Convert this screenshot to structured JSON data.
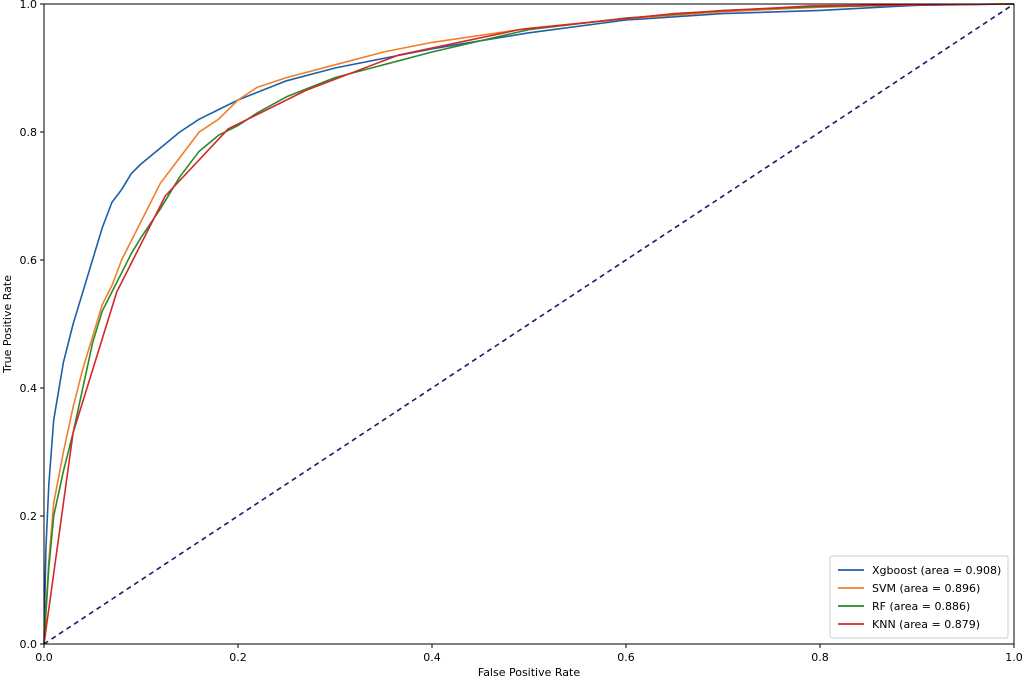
{
  "chart_data": {
    "type": "line",
    "title": "",
    "xlabel": "False Positive Rate",
    "ylabel": "True Positive Rate",
    "xlim": [
      0.0,
      1.0
    ],
    "ylim": [
      0.0,
      1.0
    ],
    "xticks": [
      "0.0",
      "0.2",
      "0.4",
      "0.6",
      "0.8",
      "1.0"
    ],
    "yticks": [
      "0.0",
      "0.2",
      "0.4",
      "0.6",
      "0.8",
      "1.0"
    ],
    "grid": false,
    "legend_position": "lower-right",
    "series": [
      {
        "name": "Xgboost (area = 0.908)",
        "color": "#1f5fa8",
        "style": "solid",
        "points": [
          [
            0.0,
            0.0
          ],
          [
            0.002,
            0.15
          ],
          [
            0.005,
            0.25
          ],
          [
            0.01,
            0.35
          ],
          [
            0.02,
            0.44
          ],
          [
            0.03,
            0.5
          ],
          [
            0.04,
            0.55
          ],
          [
            0.05,
            0.6
          ],
          [
            0.06,
            0.65
          ],
          [
            0.07,
            0.69
          ],
          [
            0.08,
            0.71
          ],
          [
            0.09,
            0.735
          ],
          [
            0.1,
            0.75
          ],
          [
            0.12,
            0.775
          ],
          [
            0.14,
            0.8
          ],
          [
            0.16,
            0.82
          ],
          [
            0.18,
            0.835
          ],
          [
            0.2,
            0.85
          ],
          [
            0.25,
            0.88
          ],
          [
            0.3,
            0.9
          ],
          [
            0.35,
            0.915
          ],
          [
            0.4,
            0.93
          ],
          [
            0.5,
            0.955
          ],
          [
            0.6,
            0.975
          ],
          [
            0.7,
            0.985
          ],
          [
            0.8,
            0.99
          ],
          [
            0.9,
            0.998
          ],
          [
            1.0,
            1.0
          ]
        ]
      },
      {
        "name": "SVM (area = 0.896)",
        "color": "#f07f2a",
        "style": "solid",
        "points": [
          [
            0.0,
            0.0
          ],
          [
            0.005,
            0.13
          ],
          [
            0.01,
            0.22
          ],
          [
            0.02,
            0.3
          ],
          [
            0.03,
            0.37
          ],
          [
            0.04,
            0.43
          ],
          [
            0.05,
            0.48
          ],
          [
            0.06,
            0.53
          ],
          [
            0.07,
            0.56
          ],
          [
            0.08,
            0.6
          ],
          [
            0.09,
            0.63
          ],
          [
            0.1,
            0.66
          ],
          [
            0.12,
            0.72
          ],
          [
            0.14,
            0.76
          ],
          [
            0.16,
            0.8
          ],
          [
            0.18,
            0.82
          ],
          [
            0.2,
            0.85
          ],
          [
            0.22,
            0.87
          ],
          [
            0.25,
            0.885
          ],
          [
            0.3,
            0.905
          ],
          [
            0.35,
            0.925
          ],
          [
            0.4,
            0.94
          ],
          [
            0.5,
            0.962
          ],
          [
            0.6,
            0.977
          ],
          [
            0.7,
            0.988
          ],
          [
            0.8,
            0.995
          ],
          [
            0.9,
            0.999
          ],
          [
            1.0,
            1.0
          ]
        ]
      },
      {
        "name": "RF (area = 0.886)",
        "color": "#2a8a2a",
        "style": "solid",
        "points": [
          [
            0.0,
            0.0
          ],
          [
            0.005,
            0.12
          ],
          [
            0.01,
            0.2
          ],
          [
            0.02,
            0.27
          ],
          [
            0.03,
            0.33
          ],
          [
            0.04,
            0.4
          ],
          [
            0.05,
            0.47
          ],
          [
            0.06,
            0.52
          ],
          [
            0.07,
            0.55
          ],
          [
            0.08,
            0.58
          ],
          [
            0.09,
            0.61
          ],
          [
            0.1,
            0.635
          ],
          [
            0.12,
            0.68
          ],
          [
            0.14,
            0.73
          ],
          [
            0.16,
            0.77
          ],
          [
            0.18,
            0.795
          ],
          [
            0.2,
            0.81
          ],
          [
            0.22,
            0.83
          ],
          [
            0.25,
            0.855
          ],
          [
            0.3,
            0.885
          ],
          [
            0.35,
            0.905
          ],
          [
            0.4,
            0.925
          ],
          [
            0.5,
            0.96
          ],
          [
            0.6,
            0.978
          ],
          [
            0.7,
            0.99
          ],
          [
            0.8,
            0.996
          ],
          [
            0.9,
            0.999
          ],
          [
            1.0,
            1.0
          ]
        ]
      },
      {
        "name": "KNN (area = 0.879)",
        "color": "#d62728",
        "style": "solid",
        "points": [
          [
            0.0,
            0.0
          ],
          [
            0.03,
            0.33
          ],
          [
            0.075,
            0.55
          ],
          [
            0.125,
            0.7
          ],
          [
            0.19,
            0.805
          ],
          [
            0.27,
            0.865
          ],
          [
            0.365,
            0.92
          ],
          [
            0.49,
            0.96
          ],
          [
            0.65,
            0.985
          ],
          [
            0.79,
            0.997
          ],
          [
            1.0,
            1.0
          ]
        ]
      },
      {
        "name": "",
        "color": "#1a1a6e",
        "style": "dashed",
        "points": [
          [
            0.0,
            0.0
          ],
          [
            1.0,
            1.0
          ]
        ]
      }
    ]
  }
}
